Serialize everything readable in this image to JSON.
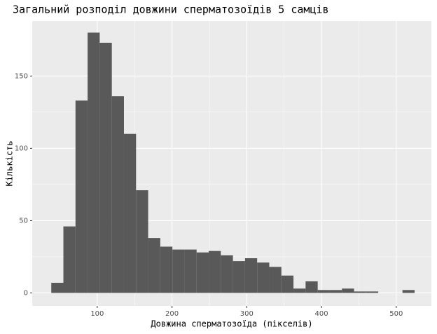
{
  "chart_data": {
    "type": "histogram",
    "title": "Загальний розподіл довжини сперматозоїдів 5 самців",
    "x_label": "Довжина сперматозоїда (пікселів)",
    "y_label": "Кількість",
    "bins": [
      38.5,
      54.7,
      70.9,
      87.1,
      103.3,
      119.5,
      135.7,
      151.9,
      168.1,
      184.3,
      200.5,
      216.7,
      232.9,
      249.1,
      265.3,
      281.5,
      297.7,
      313.9,
      330.1,
      346.3,
      362.5,
      378.7,
      394.9,
      411.1,
      427.3,
      443.5,
      459.7,
      475.9,
      492.1,
      508.3,
      524.5
    ],
    "values": [
      7,
      46,
      133,
      180,
      173,
      136,
      110,
      71,
      38,
      32,
      30,
      30,
      28,
      29,
      26,
      22,
      24,
      21,
      18,
      12,
      3,
      8,
      2,
      2,
      3,
      1,
      1,
      0,
      0,
      2
    ],
    "color": "#595959",
    "xlim": [
      13,
      547
    ],
    "ylim": [
      -9,
      188
    ],
    "xticks": [
      100,
      200,
      300,
      400,
      500
    ],
    "yticks": [
      0,
      50,
      100,
      150
    ],
    "grid": true
  }
}
